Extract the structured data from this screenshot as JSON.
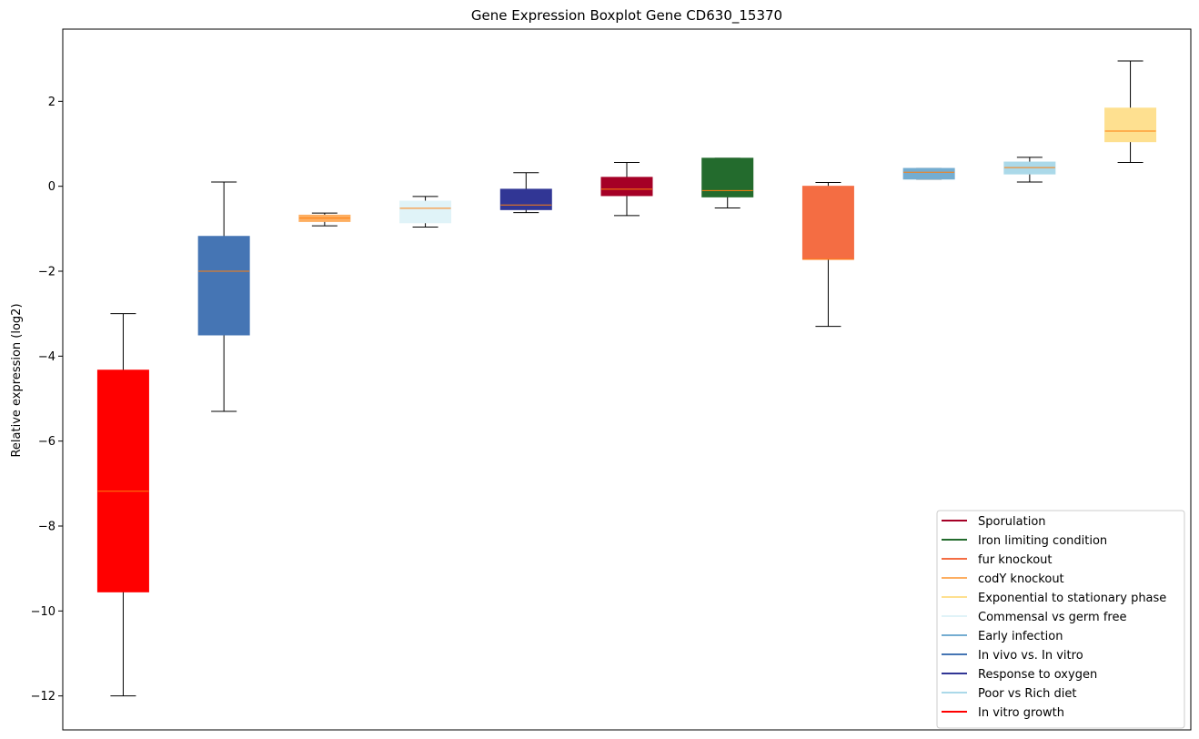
{
  "chart_data": {
    "type": "boxplot",
    "title": "Gene Expression Boxplot Gene CD630_15370",
    "xlabel": "",
    "ylabel": "Relative expression (log2)",
    "ylim": [
      -12.8,
      3.7
    ],
    "yticks": [
      2,
      0,
      -2,
      -4,
      -6,
      -8,
      -10,
      -12
    ],
    "ytick_labels": [
      "2",
      "0",
      "−2",
      "−4",
      "−6",
      "−8",
      "−10",
      "−12"
    ],
    "grid": false,
    "legend_position": "lower-right",
    "median_color": "#ff7f0e",
    "boxes": [
      {
        "name": "In vitro growth",
        "color": "#ff0000",
        "whisker_low": -12.0,
        "q1": -9.55,
        "median": -7.18,
        "q3": -4.33,
        "whisker_high": -3.0
      },
      {
        "name": "In vivo vs. In vitro",
        "color": "#4575b4",
        "whisker_low": -5.3,
        "q1": -3.5,
        "median": -2.0,
        "q3": -1.18,
        "whisker_high": 0.1
      },
      {
        "name": "codY knockout",
        "color": "#fdae61",
        "whisker_low": -0.93,
        "q1": -0.83,
        "median": -0.75,
        "q3": -0.68,
        "whisker_high": -0.63
      },
      {
        "name": "Commensal vs germ free",
        "color": "#e0f3f8",
        "whisker_low": -0.96,
        "q1": -0.86,
        "median": -0.52,
        "q3": -0.35,
        "whisker_high": -0.24
      },
      {
        "name": "Response to oxygen",
        "color": "#313695",
        "whisker_low": -0.62,
        "q1": -0.55,
        "median": -0.44,
        "q3": -0.07,
        "whisker_high": 0.32
      },
      {
        "name": "Sporulation",
        "color": "#a50026",
        "whisker_low": -0.69,
        "q1": -0.22,
        "median": -0.07,
        "q3": 0.21,
        "whisker_high": 0.56
      },
      {
        "name": "Iron limiting condition",
        "color": "#236b2d",
        "whisker_low": -0.51,
        "q1": -0.25,
        "median": -0.1,
        "q3": 0.66,
        "whisker_high": 0.66
      },
      {
        "name": "fur knockout",
        "color": "#f46d43",
        "whisker_low": -3.3,
        "q1": -1.72,
        "median": -1.72,
        "q3": 0.0,
        "whisker_high": 0.09
      },
      {
        "name": "Early infection",
        "color": "#74add1",
        "whisker_low": 0.17,
        "q1": 0.17,
        "median": 0.33,
        "q3": 0.42,
        "whisker_high": 0.42
      },
      {
        "name": "Poor vs Rich diet",
        "color": "#abd9e9",
        "whisker_low": 0.1,
        "q1": 0.29,
        "median": 0.44,
        "q3": 0.57,
        "whisker_high": 0.68
      },
      {
        "name": "Exponential to stationary phase",
        "color": "#fee090",
        "whisker_low": 0.56,
        "q1": 1.05,
        "median": 1.3,
        "q3": 1.84,
        "whisker_high": 2.95
      }
    ],
    "legend": [
      {
        "label": "Sporulation",
        "color": "#a50026"
      },
      {
        "label": "Iron limiting condition",
        "color": "#236b2d"
      },
      {
        "label": "fur knockout",
        "color": "#f46d43"
      },
      {
        "label": "codY knockout",
        "color": "#fdae61"
      },
      {
        "label": "Exponential to stationary phase",
        "color": "#fee090"
      },
      {
        "label": "Commensal vs germ free",
        "color": "#e0f3f8"
      },
      {
        "label": "Early infection",
        "color": "#74add1"
      },
      {
        "label": "In vivo vs. In vitro",
        "color": "#4575b4"
      },
      {
        "label": "Response to oxygen",
        "color": "#313695"
      },
      {
        "label": "Poor vs Rich diet",
        "color": "#abd9e9"
      },
      {
        "label": "In vitro growth",
        "color": "#ff0000"
      }
    ]
  }
}
